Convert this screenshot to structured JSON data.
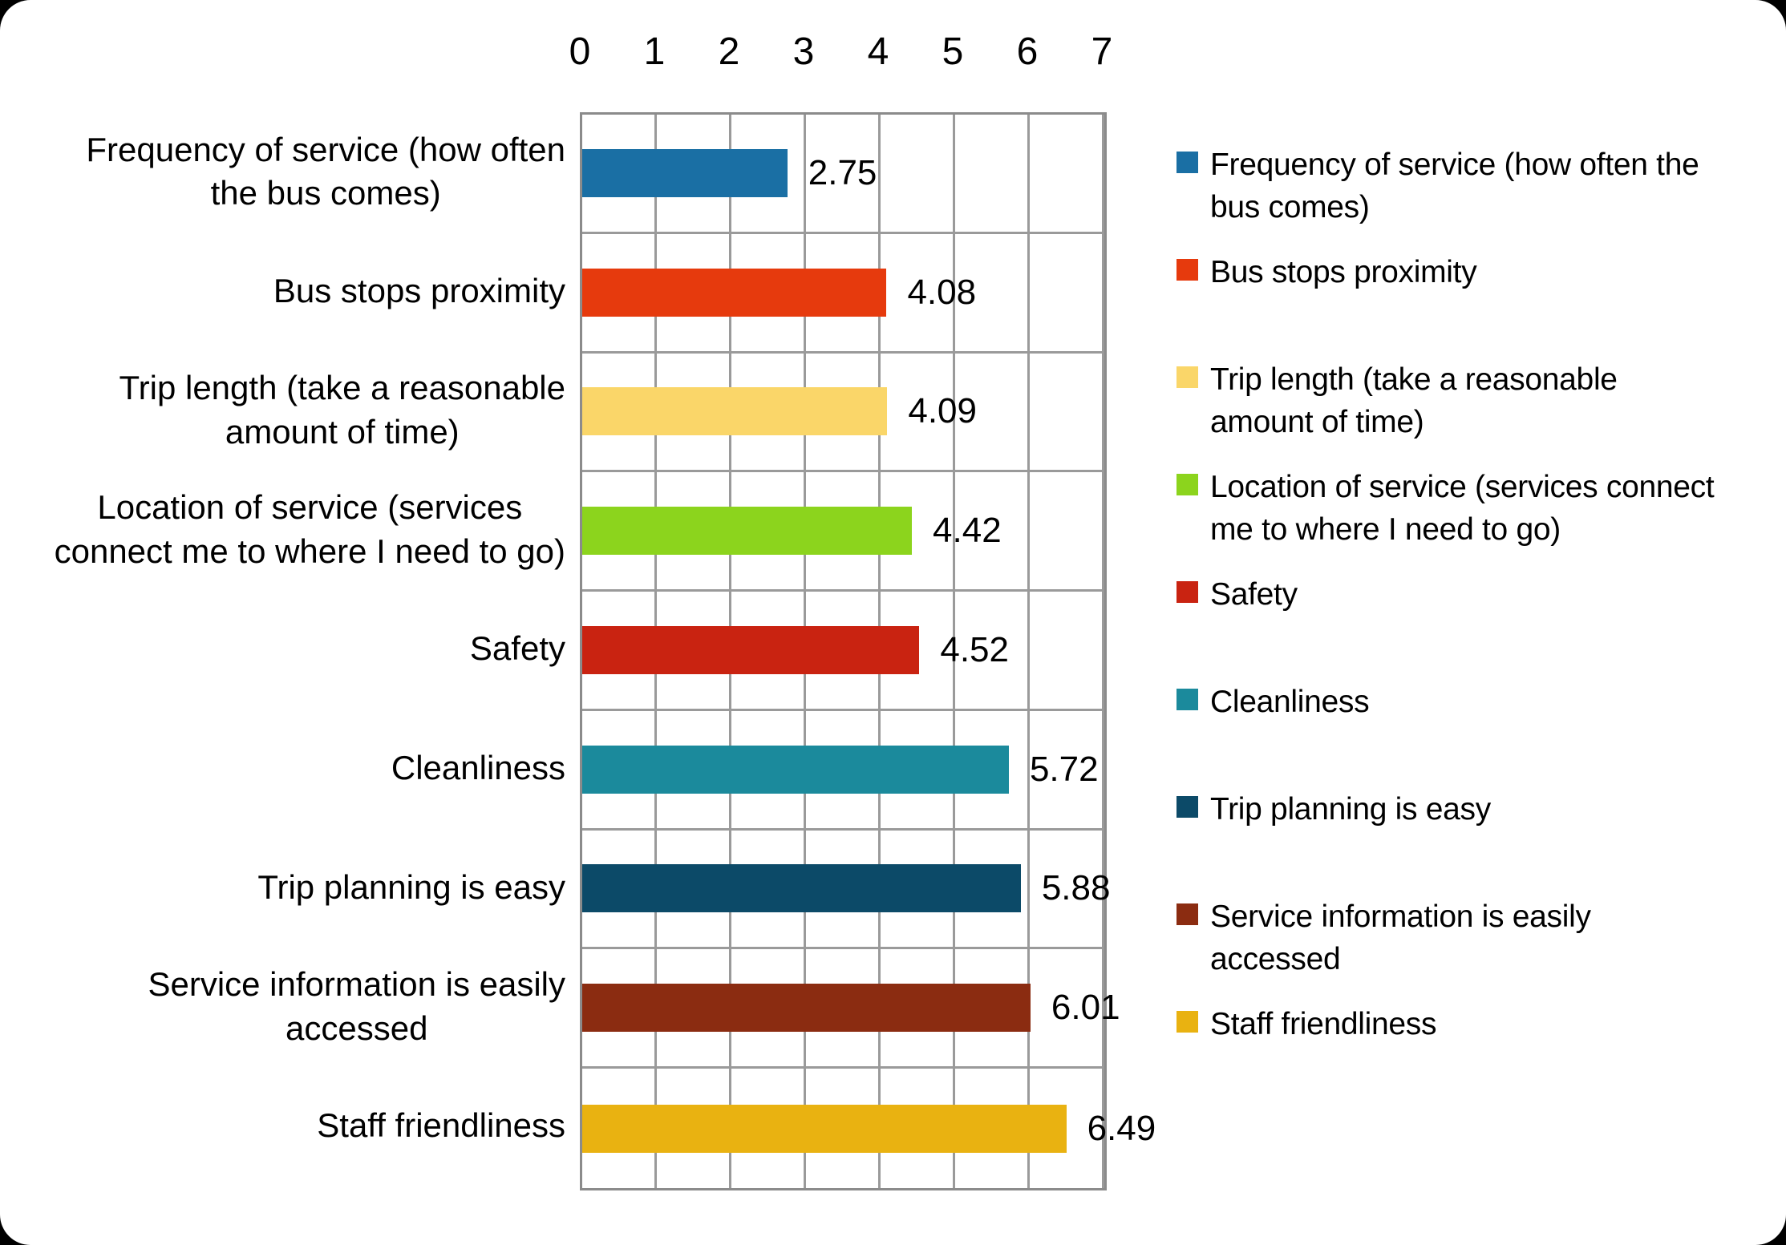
{
  "chart_data": {
    "type": "bar",
    "orientation": "horizontal",
    "title": "",
    "xlabel": "",
    "ylabel": "",
    "xlim": [
      0,
      7
    ],
    "x_ticks": [
      "0",
      "1",
      "2",
      "3",
      "4",
      "5",
      "6",
      "7"
    ],
    "grid": true,
    "grid_color": "#9a9a9a",
    "plot_border_color": "#8b8b8b",
    "legend_position": "right",
    "categories": [
      "Frequency of service (how often\nthe bus comes)",
      "Bus stops proximity",
      "Trip length (take a reasonable\namount of time)",
      "Location of service (services\nconnect me to where I need to go)",
      "Safety",
      "Cleanliness",
      "Trip planning is easy",
      "Service information is easily\naccessed",
      "Staff friendliness"
    ],
    "values": [
      2.75,
      4.08,
      4.09,
      4.42,
      4.52,
      5.72,
      5.88,
      6.01,
      6.49
    ],
    "value_labels": [
      "2.75",
      "4.08",
      "4.09",
      "4.42",
      "4.52",
      "5.72",
      "5.88",
      "6.01",
      "6.49"
    ],
    "colors": [
      "#1a6fa4",
      "#e63a0d",
      "#fad669",
      "#8cd41d",
      "#c92311",
      "#1b8a9c",
      "#0c4a68",
      "#8b2c11",
      "#e9b211"
    ],
    "legend_labels": [
      "Frequency of service (how often the\nbus comes)",
      "Bus stops proximity",
      "Trip length (take a reasonable\namount of time)",
      "Location of service (services connect\nme to where I need to go)",
      "Safety",
      "Cleanliness",
      "Trip planning is easy",
      "Service information is easily\naccessed",
      "Staff friendliness"
    ]
  }
}
